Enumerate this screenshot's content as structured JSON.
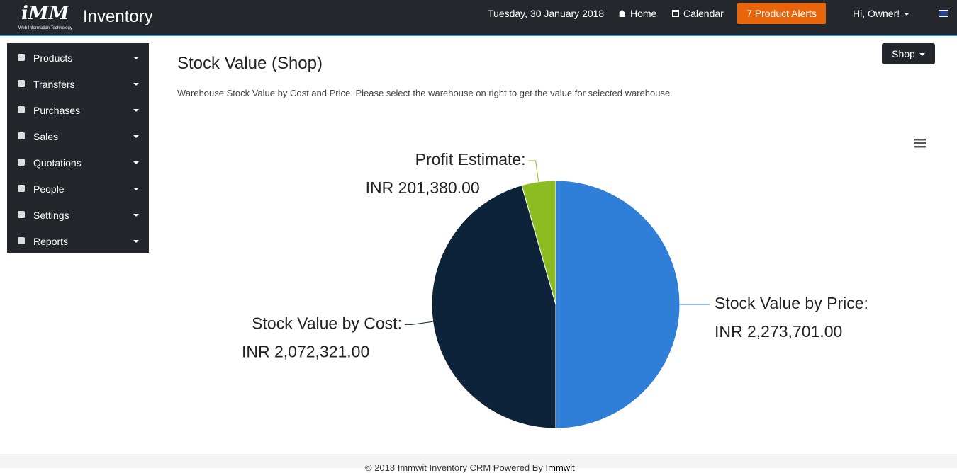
{
  "header": {
    "logo": "iMM",
    "logo_sub": "Web Information Technology",
    "app_name": "Inventory",
    "date": "Tuesday, 30 January 2018",
    "nav": [
      "Home",
      "Calendar"
    ],
    "alerts": "7 Product Alerts",
    "user": "Hi, Owner!"
  },
  "sidebar": {
    "items": [
      "Products",
      "Transfers",
      "Purchases",
      "Sales",
      "Quotations",
      "People",
      "Settings",
      "Reports"
    ]
  },
  "page": {
    "title": "Stock Value (Shop)",
    "description": "Warehouse Stock Value by Cost and Price. Please select the warehouse on right to get the value for selected warehouse.",
    "dropdown": "Shop"
  },
  "chart_data": {
    "type": "pie",
    "categories": [
      "Stock Value by Price:",
      "Stock Value by Cost:",
      "Profit Estimate:"
    ],
    "values": [
      2273701,
      2072321,
      201380
    ],
    "value_labels": [
      "INR 2,273,701.00",
      "INR 2,072,321.00",
      "INR 201,380.00"
    ],
    "colors": [
      "#2f7ed8",
      "#0d233a",
      "#8bbc21"
    ]
  },
  "footer": {
    "text": "© 2018 Immwit Inventory CRM Powered By",
    "link": "Immwit"
  }
}
